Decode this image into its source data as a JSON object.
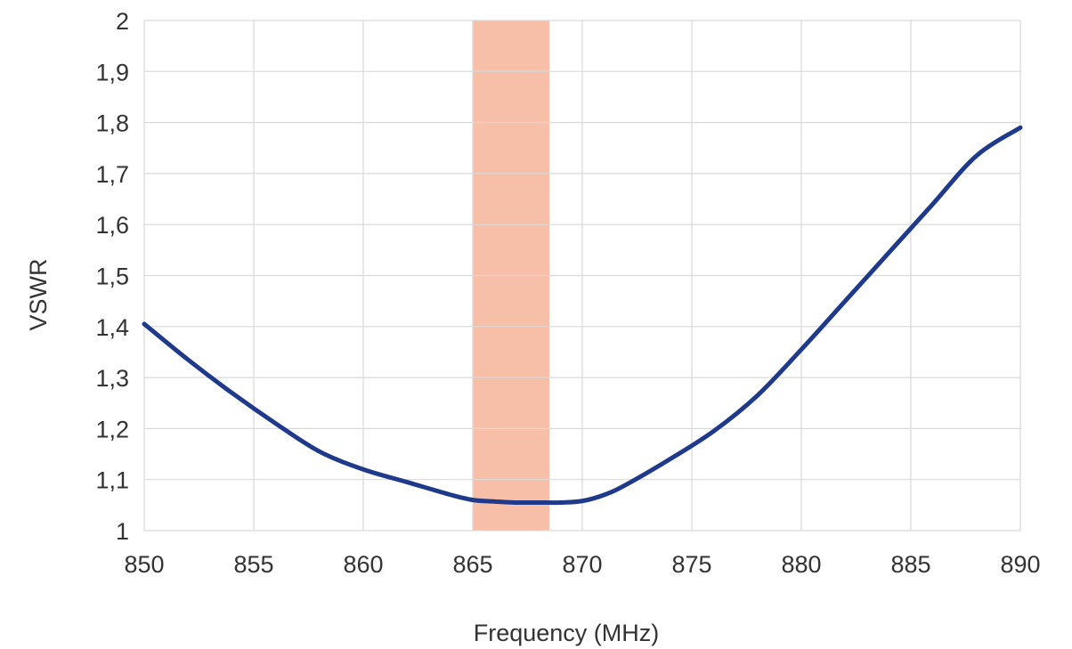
{
  "chart_data": {
    "type": "line",
    "title": "",
    "xlabel": "Frequency (MHz)",
    "ylabel": "VSWR",
    "xlim": [
      850,
      890
    ],
    "ylim": [
      1,
      2
    ],
    "x_ticks": [
      850,
      855,
      860,
      865,
      870,
      875,
      880,
      885,
      890
    ],
    "x_tick_labels": [
      "850",
      "855",
      "860",
      "865",
      "870",
      "875",
      "880",
      "885",
      "890"
    ],
    "y_ticks": [
      1,
      1.1,
      1.2,
      1.3,
      1.4,
      1.5,
      1.6,
      1.7,
      1.8,
      1.9,
      2
    ],
    "y_tick_labels": [
      "1",
      "1,1",
      "1,2",
      "1,3",
      "1,4",
      "1,5",
      "1,6",
      "1,7",
      "1,8",
      "1,9",
      "2"
    ],
    "grid": true,
    "highlight_band": {
      "x_start": 865,
      "x_end": 868.5,
      "color": "#f7bfa8"
    },
    "series": [
      {
        "color": "#1f3a8a",
        "x": [
          850,
          852,
          854,
          856,
          858,
          860,
          862,
          864,
          865,
          866,
          867,
          868,
          869,
          870,
          871,
          872,
          874,
          876,
          878,
          880,
          882,
          884,
          886,
          888,
          890
        ],
        "y": [
          1.405,
          1.335,
          1.27,
          1.21,
          1.155,
          1.12,
          1.095,
          1.07,
          1.06,
          1.057,
          1.055,
          1.055,
          1.055,
          1.058,
          1.07,
          1.09,
          1.14,
          1.195,
          1.265,
          1.355,
          1.45,
          1.545,
          1.64,
          1.735,
          1.79
        ]
      }
    ]
  }
}
